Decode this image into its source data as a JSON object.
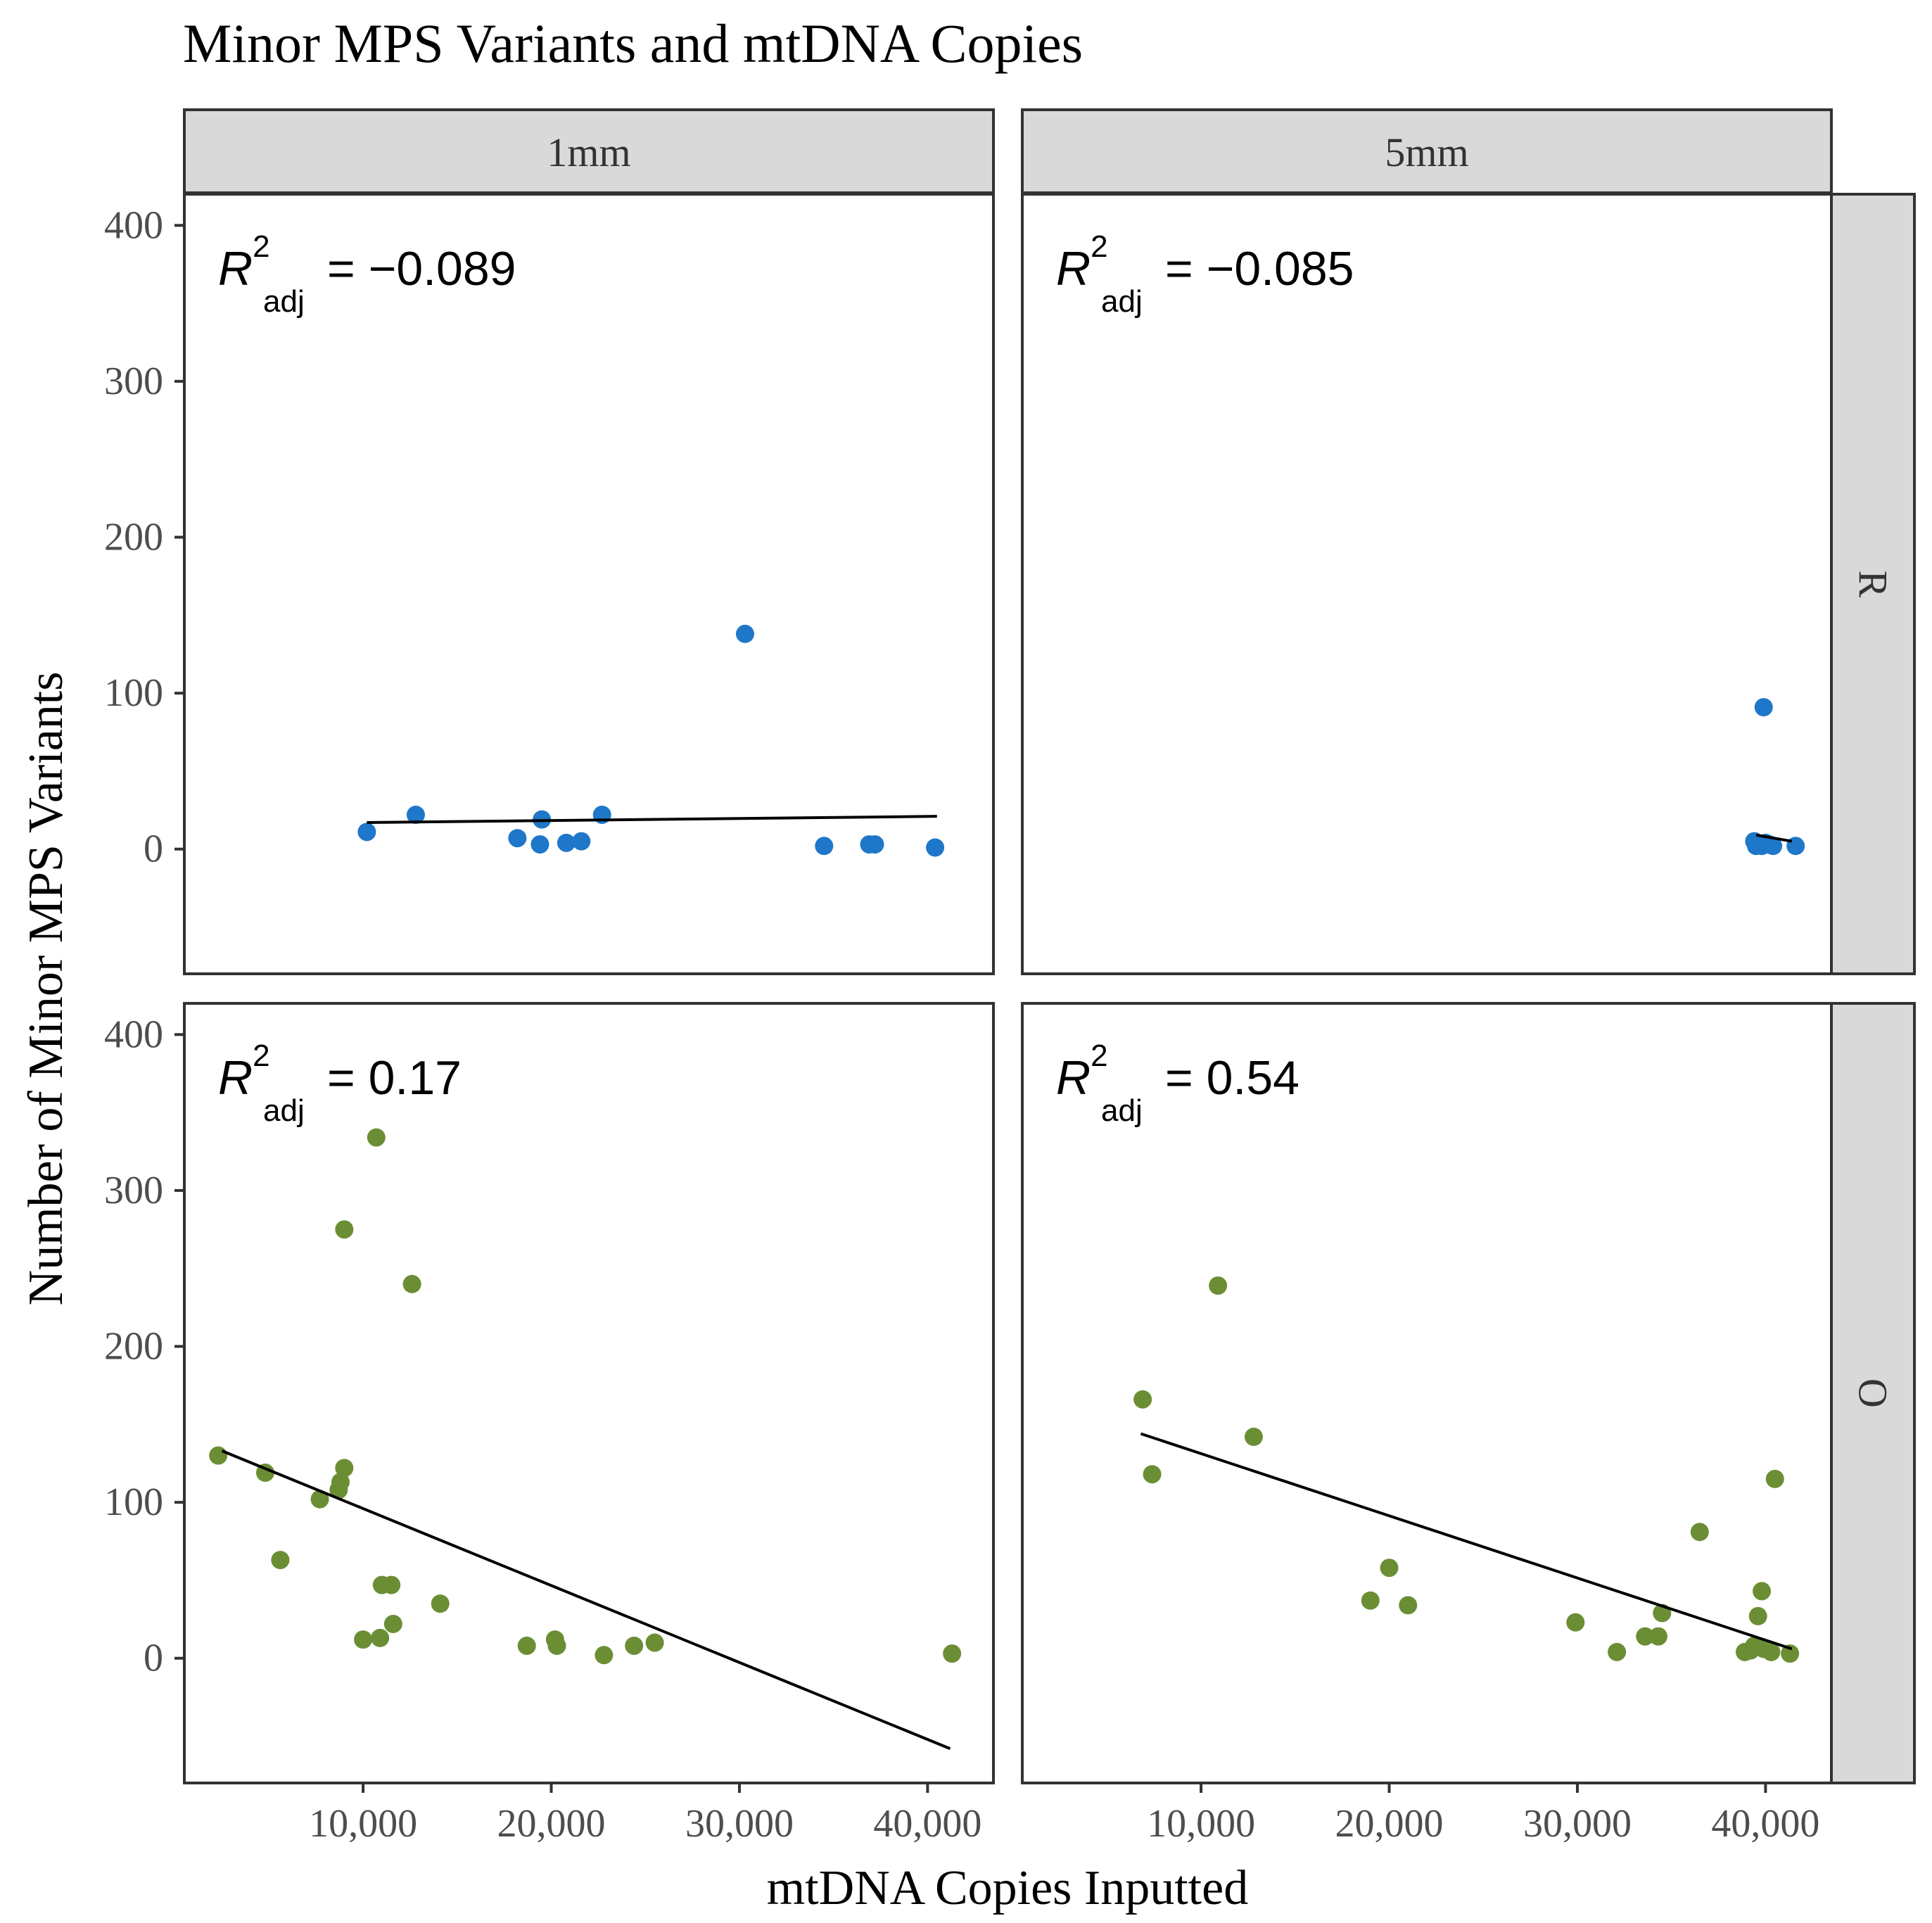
{
  "chart_data": {
    "type": "scatter",
    "title": "Minor MPS Variants and mtDNA Copies",
    "xlabel": "mtDNA Copies Inputted",
    "ylabel": "Number of Minor MPS Variants",
    "xlim": [
      500,
      43500
    ],
    "ylim": [
      -80,
      420
    ],
    "x_ticks": [
      10000,
      20000,
      30000,
      40000
    ],
    "x_tick_labels": [
      "10,000",
      "20,000",
      "30,000",
      "40,000"
    ],
    "y_ticks": [
      0,
      100,
      200,
      300,
      400
    ],
    "y_tick_labels": [
      "0",
      "100",
      "200",
      "300",
      "400"
    ],
    "grid": false,
    "col_strips": [
      "1mm",
      "5mm"
    ],
    "row_strips": [
      "R",
      "O"
    ],
    "colors": {
      "R": "#1f77c9",
      "O": "#6b8e35",
      "fit": "#000000",
      "strip_fill": "#d9d9d9",
      "frame": "#333333"
    },
    "panels": [
      {
        "col": 0,
        "row": 0,
        "group": "R",
        "r2_prefix": "R",
        "r2_sup": "2",
        "r2_sub": "adj",
        "r2_value": "= −0.089",
        "fit": {
          "x": [
            10200,
            40500
          ],
          "y": [
            17,
            21
          ]
        },
        "points": [
          [
            10200,
            11
          ],
          [
            12800,
            22
          ],
          [
            18200,
            7
          ],
          [
            19400,
            3
          ],
          [
            19500,
            19
          ],
          [
            20800,
            4
          ],
          [
            21600,
            5
          ],
          [
            22700,
            22
          ],
          [
            30300,
            138
          ],
          [
            34500,
            2
          ],
          [
            36900,
            3
          ],
          [
            37200,
            3
          ],
          [
            40400,
            1
          ]
        ]
      },
      {
        "col": 1,
        "row": 0,
        "group": "R",
        "r2_prefix": "R",
        "r2_sup": "2",
        "r2_sub": "adj",
        "r2_value": "= −0.085",
        "fit": {
          "x": [
            39500,
            41400
          ],
          "y": [
            9,
            5
          ]
        },
        "points": [
          [
            39900,
            91
          ],
          [
            39400,
            5
          ],
          [
            39500,
            2
          ],
          [
            39700,
            3
          ],
          [
            39800,
            2
          ],
          [
            40000,
            4
          ],
          [
            40200,
            3
          ],
          [
            40400,
            2
          ],
          [
            41600,
            2
          ]
        ]
      },
      {
        "col": 0,
        "row": 1,
        "group": "O",
        "r2_prefix": "R",
        "r2_sup": "2",
        "r2_sub": "adj",
        "r2_value": "= 0.17",
        "fit": {
          "x": [
            2500,
            41200
          ],
          "y": [
            133,
            -58
          ]
        },
        "points": [
          [
            2300,
            130
          ],
          [
            4800,
            119
          ],
          [
            5600,
            63
          ],
          [
            7700,
            102
          ],
          [
            8700,
            108
          ],
          [
            8800,
            113
          ],
          [
            9000,
            122
          ],
          [
            9000,
            275
          ],
          [
            10000,
            12
          ],
          [
            10700,
            334
          ],
          [
            10900,
            13
          ],
          [
            11000,
            47
          ],
          [
            11500,
            47
          ],
          [
            11600,
            22
          ],
          [
            12600,
            240
          ],
          [
            14100,
            35
          ],
          [
            18700,
            8
          ],
          [
            20200,
            12
          ],
          [
            20300,
            8
          ],
          [
            22800,
            2
          ],
          [
            24400,
            8
          ],
          [
            25500,
            10
          ],
          [
            41300,
            3
          ]
        ]
      },
      {
        "col": 1,
        "row": 1,
        "group": "O",
        "r2_prefix": "R",
        "r2_sup": "2",
        "r2_sub": "adj",
        "r2_value": "= 0.54",
        "fit": {
          "x": [
            6800,
            41400
          ],
          "y": [
            144,
            6
          ]
        },
        "points": [
          [
            6900,
            166
          ],
          [
            7400,
            118
          ],
          [
            10900,
            239
          ],
          [
            12800,
            142
          ],
          [
            19000,
            37
          ],
          [
            20000,
            58
          ],
          [
            21000,
            34
          ],
          [
            29900,
            23
          ],
          [
            32100,
            4
          ],
          [
            33600,
            14
          ],
          [
            34300,
            14
          ],
          [
            34500,
            29
          ],
          [
            36500,
            81
          ],
          [
            38900,
            4
          ],
          [
            39200,
            5
          ],
          [
            39400,
            8
          ],
          [
            39600,
            27
          ],
          [
            39800,
            43
          ],
          [
            39900,
            6
          ],
          [
            40300,
            4
          ],
          [
            40500,
            115
          ],
          [
            41300,
            3
          ]
        ]
      }
    ]
  }
}
